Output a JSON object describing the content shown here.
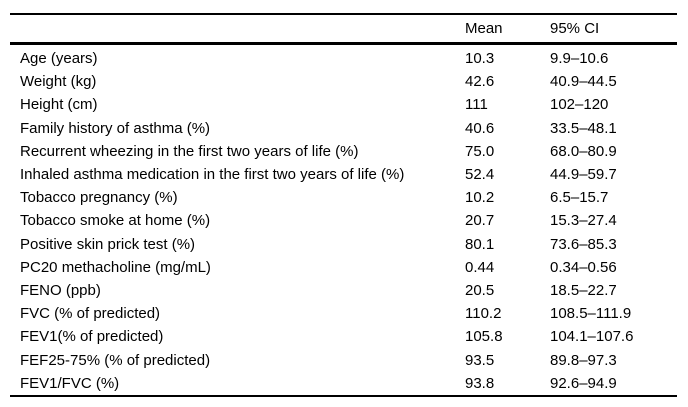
{
  "table": {
    "columns": {
      "label": "",
      "mean": "Mean",
      "ci": "95% CI"
    },
    "rows": [
      {
        "label": "Age (years)",
        "mean": "10.3",
        "ci": "9.9–10.6"
      },
      {
        "label": "Weight (kg)",
        "mean": "42.6",
        "ci": "40.9–44.5"
      },
      {
        "label": "Height (cm)",
        "mean": "111",
        "ci": "102–120"
      },
      {
        "label": "Family history of asthma (%)",
        "mean": "40.6",
        "ci": "33.5–48.1"
      },
      {
        "label": "Recurrent wheezing in the first two years of life (%)",
        "mean": "75.0",
        "ci": "68.0–80.9"
      },
      {
        "label": "Inhaled asthma medication in the first two years of life (%)",
        "mean": "52.4",
        "ci": "44.9–59.7"
      },
      {
        "label": "Tobacco pregnancy (%)",
        "mean": "10.2",
        "ci": "6.5–15.7"
      },
      {
        "label": "Tobacco smoke at home (%)",
        "mean": "20.7",
        "ci": "15.3–27.4"
      },
      {
        "label": "Positive skin prick test (%)",
        "mean": "80.1",
        "ci": "73.6–85.3"
      },
      {
        "label": "PC20 methacholine (mg/mL)",
        "mean": "0.44",
        "ci": "0.34–0.56"
      },
      {
        "label": "FENO (ppb)",
        "mean": "20.5",
        "ci": "18.5–22.7"
      },
      {
        "label": "FVC (% of predicted)",
        "mean": "110.2",
        "ci": "108.5–111.9"
      },
      {
        "label": "FEV1(% of predicted)",
        "mean": "105.8",
        "ci": "104.1–107.6"
      },
      {
        "label": "FEF25-75% (% of predicted)",
        "mean": "93.5",
        "ci": "89.8–97.3"
      },
      {
        "label": "FEV1/FVC (%)",
        "mean": "93.8",
        "ci": "92.6–94.9"
      }
    ]
  },
  "colors": {
    "text": "#000000",
    "background": "#ffffff",
    "rule": "#000000"
  },
  "chart_data": {
    "type": "table",
    "columns": [
      "",
      "Mean",
      "95% CI"
    ],
    "rows": [
      [
        "Age (years)",
        "10.3",
        "9.9–10.6"
      ],
      [
        "Weight (kg)",
        "42.6",
        "40.9–44.5"
      ],
      [
        "Height (cm)",
        "111",
        "102–120"
      ],
      [
        "Family history of asthma (%)",
        "40.6",
        "33.5–48.1"
      ],
      [
        "Recurrent wheezing in the first two years of life (%)",
        "75.0",
        "68.0–80.9"
      ],
      [
        "Inhaled asthma medication in the first two years of life (%)",
        "52.4",
        "44.9–59.7"
      ],
      [
        "Tobacco pregnancy (%)",
        "10.2",
        "6.5–15.7"
      ],
      [
        "Tobacco smoke at home (%)",
        "20.7",
        "15.3–27.4"
      ],
      [
        "Positive skin prick test (%)",
        "80.1",
        "73.6–85.3"
      ],
      [
        "PC20 methacholine (mg/mL)",
        "0.44",
        "0.34–0.56"
      ],
      [
        "FENO (ppb)",
        "20.5",
        "18.5–22.7"
      ],
      [
        "FVC (% of predicted)",
        "110.2",
        "108.5–111.9"
      ],
      [
        "FEV1(% of predicted)",
        "105.8",
        "104.1–107.6"
      ],
      [
        "FEF25-75% (% of predicted)",
        "93.5",
        "89.8–97.3"
      ],
      [
        "FEV1/FVC (%)",
        "93.8",
        "92.6–94.9"
      ]
    ]
  }
}
